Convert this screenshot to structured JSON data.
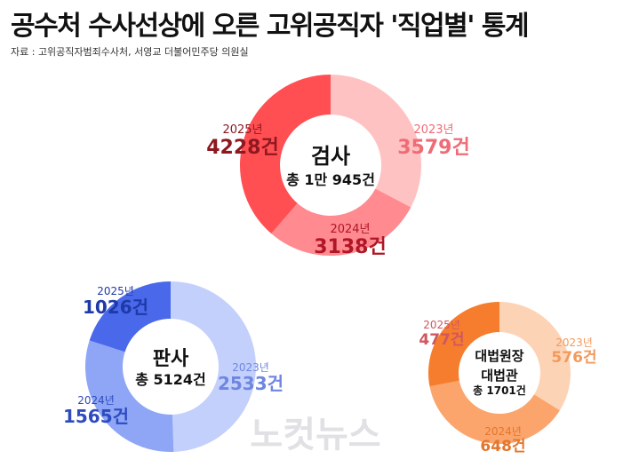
{
  "title": "공수처 수사선상에 오른 고위공직자 '직업별' 통계",
  "source": "자료 : 고위공직자범죄수사처, 서영교 더불어민주당 의원실",
  "watermark": "노컷뉴스",
  "chart_data": [
    {
      "type": "pie",
      "style": "donut",
      "center_lines": [
        "검사",
        "총 1만 945건"
      ],
      "total": 10945,
      "series": [
        {
          "year": "2023년",
          "value": 3579,
          "value_label": "3579건",
          "color": "#ffc2c2",
          "text_color": "#ee6c76"
        },
        {
          "year": "2024년",
          "value": 3138,
          "value_label": "3138건",
          "color": "#ff8a8f",
          "text_color": "#b01726"
        },
        {
          "year": "2025년",
          "value": 4228,
          "value_label": "4228건",
          "color": "#ff4f52",
          "text_color": "#8e1720"
        }
      ]
    },
    {
      "type": "pie",
      "style": "donut",
      "center_lines": [
        "판사",
        "총 5124건"
      ],
      "total": 5124,
      "series": [
        {
          "year": "2023년",
          "value": 2533,
          "value_label": "2533건",
          "color": "#c3d0fb",
          "text_color": "#6f86e0"
        },
        {
          "year": "2024년",
          "value": 1565,
          "value_label": "1565건",
          "color": "#8ea6f5",
          "text_color": "#2e4bbf"
        },
        {
          "year": "2025년",
          "value": 1026,
          "value_label": "1026건",
          "color": "#4968ea",
          "text_color": "#1e3aa8"
        }
      ]
    },
    {
      "type": "pie",
      "style": "donut",
      "center_lines": [
        "대법원장",
        "대법관",
        "총 1701건"
      ],
      "total": 1701,
      "series": [
        {
          "year": "2023년",
          "value": 576,
          "value_label": "576건",
          "color": "#fdd3b6",
          "text_color": "#f29a5c"
        },
        {
          "year": "2024년",
          "value": 648,
          "value_label": "648건",
          "color": "#fba56c",
          "text_color": "#e2762e"
        },
        {
          "year": "2025년",
          "value": 477,
          "value_label": "477건",
          "color": "#f67d2e",
          "text_color": "#d0575f"
        }
      ]
    }
  ]
}
